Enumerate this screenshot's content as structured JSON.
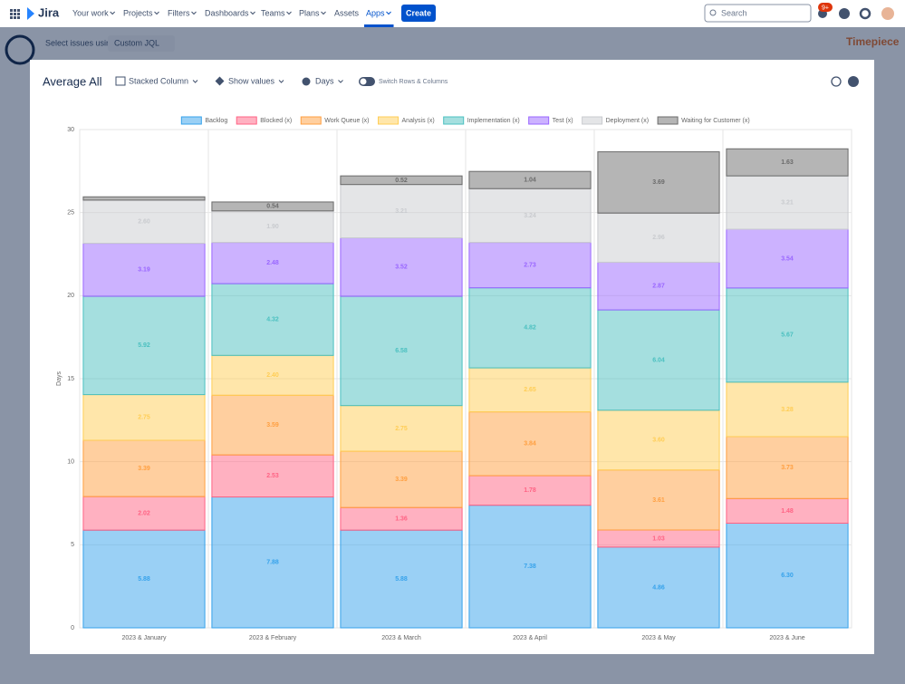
{
  "nav": {
    "product": "Jira",
    "items": [
      "Your work",
      "Projects",
      "Filters",
      "Dashboards",
      "Teams",
      "Plans",
      "Assets",
      "Apps"
    ],
    "create": "Create",
    "search": "Search",
    "badge": "9+"
  },
  "background": {
    "select_label": "Select issues using",
    "select_value": "Custom JQL",
    "brand": "Timepiece"
  },
  "modal": {
    "title": "Average All",
    "toolbar": [
      "Stacked Column",
      "Show values",
      "Days",
      "Switch Rows & Columns"
    ]
  },
  "chart_data": {
    "type": "stacked_bar",
    "y_label": "Days",
    "categories": [
      "2023 & January",
      "2023 & February",
      "2023 & March",
      "2023 & April",
      "2023 & May",
      "2023 & June"
    ],
    "ylim": [
      0,
      30
    ],
    "yticks": [
      0,
      5,
      10,
      15,
      20,
      25,
      30
    ],
    "grid": true,
    "legend": "top",
    "series": [
      {
        "name": "Backlog",
        "color": "#36a2eb",
        "values": [
          5.88,
          7.88,
          5.88,
          7.38,
          4.86,
          6.3
        ],
        "value_labels": [
          "5.88",
          "7.88",
          "5.88",
          "7.38",
          "4.86",
          "6.30"
        ]
      },
      {
        "name": "Blocked (x)",
        "color": "#ff6384",
        "values": [
          2.02,
          2.53,
          1.36,
          1.78,
          1.03,
          1.48
        ],
        "value_labels": [
          "2.02",
          "2.53",
          "1.36",
          "1.78",
          "1.03",
          "1.48"
        ]
      },
      {
        "name": "Work Queue (x)",
        "color": "#ff9f40",
        "values": [
          3.39,
          3.59,
          3.39,
          3.84,
          3.61,
          3.73
        ],
        "value_labels": [
          "3.39",
          "3.59",
          "3.39",
          "3.84",
          "3.61",
          "3.73"
        ]
      },
      {
        "name": "Analysis (x)",
        "color": "#ffcd56",
        "values": [
          2.75,
          2.4,
          2.75,
          2.65,
          3.6,
          3.28
        ],
        "value_labels": [
          "2.75",
          "2.40",
          "2.75",
          "2.65",
          "3.60",
          "3.28"
        ]
      },
      {
        "name": "Implementation (x)",
        "color": "#4bc0c0",
        "values": [
          5.92,
          4.32,
          6.58,
          4.82,
          6.04,
          5.67
        ],
        "value_labels": [
          "5.92",
          "4.32",
          "6.58",
          "4.82",
          "6.04",
          "5.67"
        ]
      },
      {
        "name": "Test (x)",
        "color": "#9966ff",
        "values": [
          3.19,
          2.48,
          3.52,
          2.73,
          2.87,
          3.54
        ],
        "value_labels": [
          "3.19",
          "2.48",
          "3.52",
          "2.73",
          "2.87",
          "3.54"
        ]
      },
      {
        "name": "Deployment (x)",
        "color": "#c9cbcf",
        "values": [
          2.6,
          1.9,
          3.21,
          3.24,
          2.96,
          3.21
        ],
        "value_labels": [
          "2.60",
          "1.90",
          "3.21",
          "3.24",
          "2.96",
          "3.21"
        ]
      },
      {
        "name": "Waiting for Customer (x)",
        "color": "#6b6b6b",
        "values": [
          0.2,
          0.54,
          0.52,
          1.04,
          3.69,
          1.63
        ],
        "value_labels": [
          null,
          "0.54",
          "0.52",
          "1.04",
          "3.69",
          "1.63"
        ]
      }
    ]
  }
}
